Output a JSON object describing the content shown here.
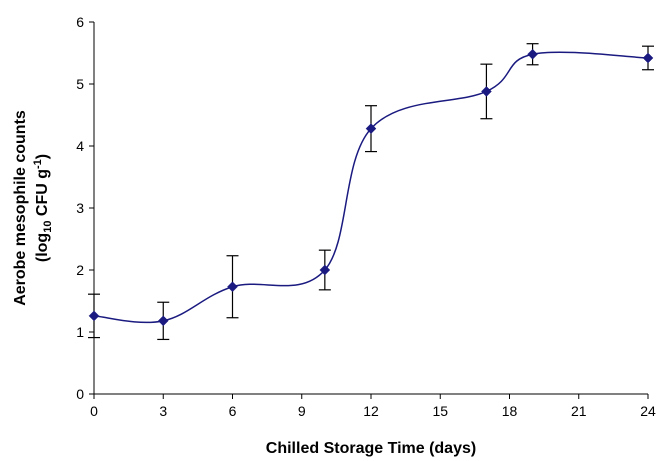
{
  "chart_data": {
    "type": "line",
    "xlabel": "Chilled Storage Time (days)",
    "ylabel_line1": "Aerobe mesophile counts",
    "ylabel_line2_parts": [
      "(log",
      "10",
      " CFU g",
      "-1",
      ")"
    ],
    "x_ticks": [
      "0",
      "3",
      "6",
      "9",
      "12",
      "15",
      "18",
      "21",
      "24"
    ],
    "y_ticks": [
      "0",
      "1",
      "2",
      "3",
      "4",
      "5",
      "6"
    ],
    "xlim": [
      0,
      24
    ],
    "ylim": [
      0,
      6
    ],
    "grid": false,
    "series": [
      {
        "points": [
          {
            "x": 0,
            "y": 1.26,
            "err": 0.35
          },
          {
            "x": 3,
            "y": 1.18,
            "err": 0.3
          },
          {
            "x": 6,
            "y": 1.73,
            "err": 0.5
          },
          {
            "x": 10,
            "y": 2.0,
            "err": 0.32
          },
          {
            "x": 12,
            "y": 4.28,
            "err": 0.37
          },
          {
            "x": 17,
            "y": 4.88,
            "err": 0.44
          },
          {
            "x": 19,
            "y": 5.48,
            "err": 0.17
          },
          {
            "x": 24,
            "y": 5.42,
            "err": 0.19
          }
        ]
      }
    ],
    "colors": {
      "line": "#1a1a80",
      "marker": "#1a1a80",
      "errorbar": "#000000"
    }
  }
}
